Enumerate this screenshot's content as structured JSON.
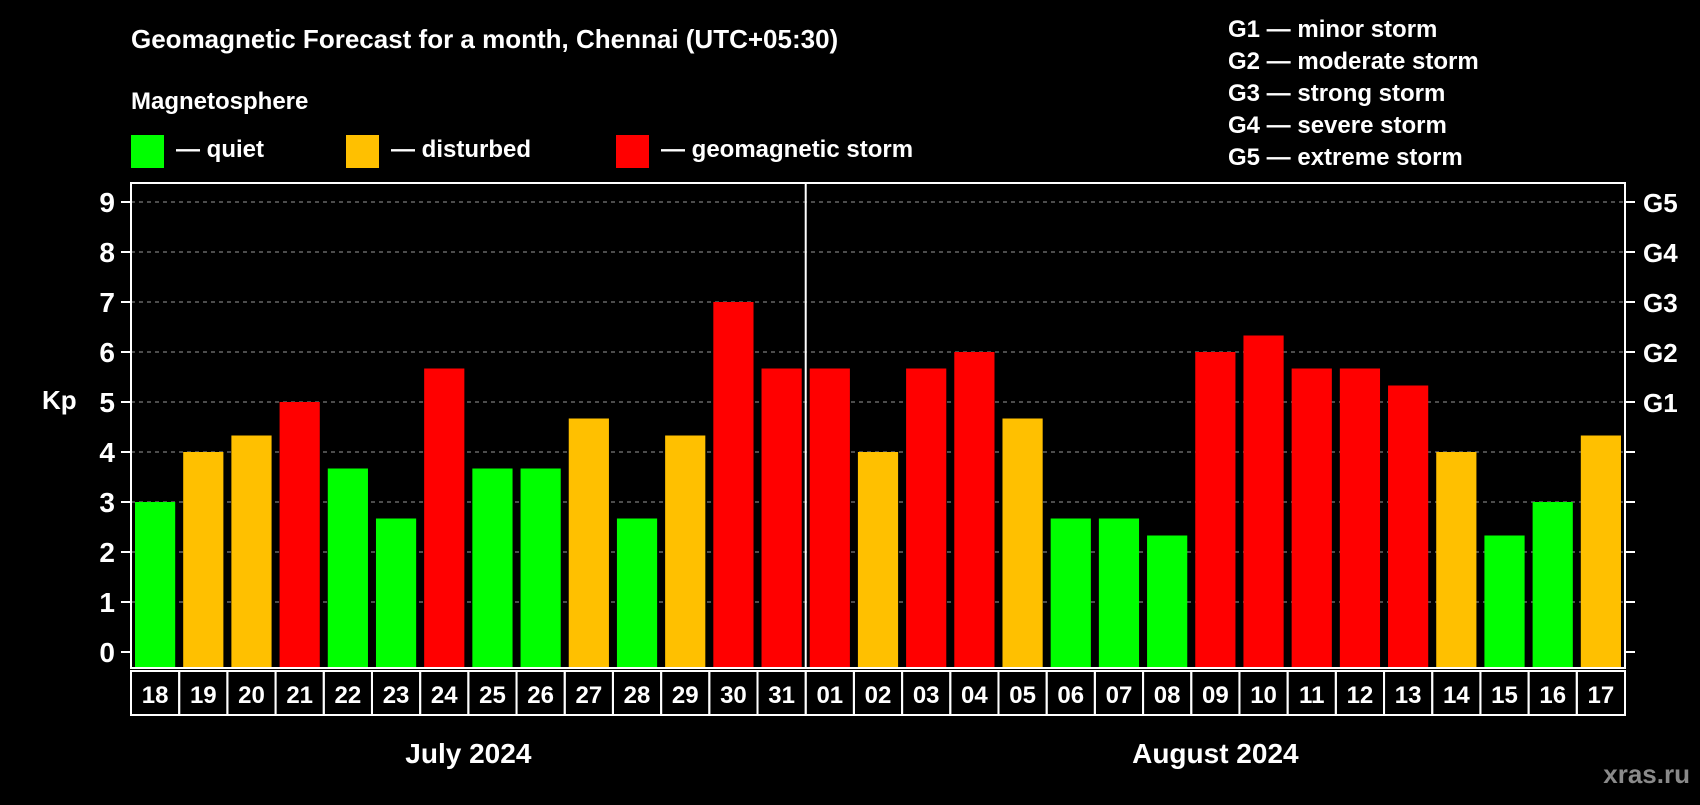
{
  "chart_data": {
    "type": "bar",
    "title": "Geomagnetic Forecast for a month, Chennai (UTC+05:30)",
    "ylabel": "Kp",
    "ylim": [
      0,
      9
    ],
    "yticks": [
      "0",
      "1",
      "2",
      "3",
      "4",
      "5",
      "6",
      "7",
      "8",
      "9"
    ],
    "right_ticks": [
      {
        "kp": 5,
        "label": "G1"
      },
      {
        "kp": 6,
        "label": "G2"
      },
      {
        "kp": 7,
        "label": "G3"
      },
      {
        "kp": 8,
        "label": "G4"
      },
      {
        "kp": 9,
        "label": "G5"
      }
    ],
    "grid": true,
    "categories": [
      "18",
      "19",
      "20",
      "21",
      "22",
      "23",
      "24",
      "25",
      "26",
      "27",
      "28",
      "29",
      "30",
      "31",
      "01",
      "02",
      "03",
      "04",
      "05",
      "06",
      "07",
      "08",
      "09",
      "10",
      "11",
      "12",
      "13",
      "14",
      "15",
      "16",
      "17"
    ],
    "values": [
      3,
      4,
      4.33,
      5,
      3.67,
      2.67,
      5.67,
      3.67,
      3.67,
      4.67,
      2.67,
      4.33,
      7,
      5.67,
      5.67,
      4,
      5.67,
      6,
      4.67,
      2.67,
      2.67,
      2.33,
      6,
      6.33,
      5.67,
      5.67,
      5.33,
      4,
      2.33,
      3,
      4.33
    ],
    "months": [
      {
        "label": "July 2024",
        "days": 14
      },
      {
        "label": "August 2024",
        "days": 17
      }
    ],
    "legend_title": "Magnetosphere",
    "legend": [
      {
        "label": "— quiet",
        "color": "#00ff00"
      },
      {
        "label": "— disturbed",
        "color": "#ffc000"
      },
      {
        "label": "— geomagnetic storm",
        "color": "#ff0000"
      }
    ],
    "storm_scale": [
      "G1 — minor storm",
      "G2 — moderate storm",
      "G3 — strong storm",
      "G4 — severe storm",
      "G5 — extreme storm"
    ],
    "watermark": "xras.ru"
  }
}
